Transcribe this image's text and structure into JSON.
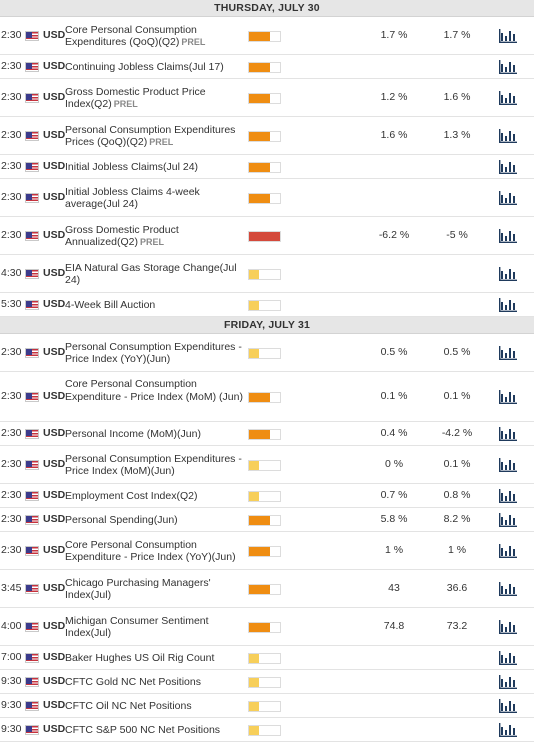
{
  "colors": {
    "impact_high_fill": "#ef8d12",
    "impact_medium_fill": "#ef8d12",
    "impact_low_fill": "#f7cf5a",
    "impact_critical_fill": "#d4493b",
    "chart_icon": "#1f3a5c"
  },
  "icons": {
    "chart": "bar-chart-icon",
    "flag": "us-flag-icon"
  },
  "days": [
    {
      "label": "THURSDAY, JULY 30",
      "events": [
        {
          "time": "2:30",
          "currency": "USD",
          "name": "Core Personal Consumption Expenditures (QoQ)(Q2)",
          "tag": "PREL",
          "impact": "high",
          "impact_level": 0.67,
          "actual": "1.7 %",
          "forecast": "1.7 %"
        },
        {
          "time": "2:30",
          "currency": "USD",
          "name": "Continuing Jobless Claims(Jul 17)",
          "tag": "",
          "impact": "high",
          "impact_level": 0.67,
          "actual": "",
          "forecast": ""
        },
        {
          "time": "2:30",
          "currency": "USD",
          "name": "Gross Domestic Product Price Index(Q2)",
          "tag": "PREL",
          "impact": "high",
          "impact_level": 0.67,
          "actual": "1.2 %",
          "forecast": "1.6 %"
        },
        {
          "time": "2:30",
          "currency": "USD",
          "name": "Personal Consumption Expenditures Prices (QoQ)(Q2)",
          "tag": "PREL",
          "impact": "high",
          "impact_level": 0.67,
          "actual": "1.6 %",
          "forecast": "1.3 %"
        },
        {
          "time": "2:30",
          "currency": "USD",
          "name": "Initial Jobless Claims(Jul 24)",
          "tag": "",
          "impact": "high",
          "impact_level": 0.67,
          "actual": "",
          "forecast": ""
        },
        {
          "time": "2:30",
          "currency": "USD",
          "name": "Initial Jobless Claims 4-week average(Jul 24)",
          "tag": "",
          "impact": "high",
          "impact_level": 0.67,
          "actual": "",
          "forecast": ""
        },
        {
          "time": "2:30",
          "currency": "USD",
          "name": "Gross Domestic Product Annualized(Q2)",
          "tag": "PREL",
          "impact": "critical",
          "impact_level": 1.0,
          "actual": "-6.2 %",
          "forecast": "-5 %"
        },
        {
          "time": "4:30",
          "currency": "USD",
          "name": "EIA Natural Gas Storage Change(Jul 24)",
          "tag": "",
          "impact": "low",
          "impact_level": 0.33,
          "actual": "",
          "forecast": ""
        },
        {
          "time": "5:30",
          "currency": "USD",
          "name": "4-Week Bill Auction",
          "tag": "",
          "impact": "low",
          "impact_level": 0.33,
          "actual": "",
          "forecast": ""
        }
      ]
    },
    {
      "label": "FRIDAY, JULY 31",
      "events": [
        {
          "time": "2:30",
          "currency": "USD",
          "name": "Personal Consumption Expenditures - Price Index (YoY)(Jun)",
          "tag": "",
          "impact": "low",
          "impact_level": 0.33,
          "actual": "0.5 %",
          "forecast": "0.5 %"
        },
        {
          "time": "2:30",
          "currency": "USD",
          "name": "Core Personal Consumption Expenditure - Price Index (MoM) (Jun)",
          "tag": "",
          "impact": "high",
          "impact_level": 0.67,
          "actual": "0.1 %",
          "forecast": "0.1 %"
        },
        {
          "time": "2:30",
          "currency": "USD",
          "name": "Personal Income (MoM)(Jun)",
          "tag": "",
          "impact": "high",
          "impact_level": 0.67,
          "actual": "0.4 %",
          "forecast": "-4.2 %"
        },
        {
          "time": "2:30",
          "currency": "USD",
          "name": "Personal Consumption Expenditures - Price Index (MoM)(Jun)",
          "tag": "",
          "impact": "low",
          "impact_level": 0.33,
          "actual": "0 %",
          "forecast": "0.1 %"
        },
        {
          "time": "2:30",
          "currency": "USD",
          "name": "Employment Cost Index(Q2)",
          "tag": "",
          "impact": "low",
          "impact_level": 0.33,
          "actual": "0.7 %",
          "forecast": "0.8 %"
        },
        {
          "time": "2:30",
          "currency": "USD",
          "name": "Personal Spending(Jun)",
          "tag": "",
          "impact": "high",
          "impact_level": 0.67,
          "actual": "5.8 %",
          "forecast": "8.2 %"
        },
        {
          "time": "2:30",
          "currency": "USD",
          "name": "Core Personal Consumption Expenditure - Price Index (YoY)(Jun)",
          "tag": "",
          "impact": "high",
          "impact_level": 0.67,
          "actual": "1 %",
          "forecast": "1 %"
        },
        {
          "time": "3:45",
          "currency": "USD",
          "name": "Chicago Purchasing Managers' Index(Jul)",
          "tag": "",
          "impact": "high",
          "impact_level": 0.67,
          "actual": "43",
          "forecast": "36.6"
        },
        {
          "time": "4:00",
          "currency": "USD",
          "name": "Michigan Consumer Sentiment Index(Jul)",
          "tag": "",
          "impact": "high",
          "impact_level": 0.67,
          "actual": "74.8",
          "forecast": "73.2"
        },
        {
          "time": "7:00",
          "currency": "USD",
          "name": "Baker Hughes US Oil Rig Count",
          "tag": "",
          "impact": "low",
          "impact_level": 0.33,
          "actual": "",
          "forecast": ""
        },
        {
          "time": "9:30",
          "currency": "USD",
          "name": "CFTC Gold NC Net Positions",
          "tag": "",
          "impact": "low",
          "impact_level": 0.33,
          "actual": "",
          "forecast": ""
        },
        {
          "time": "9:30",
          "currency": "USD",
          "name": "CFTC Oil NC Net Positions",
          "tag": "",
          "impact": "low",
          "impact_level": 0.33,
          "actual": "",
          "forecast": ""
        },
        {
          "time": "9:30",
          "currency": "USD",
          "name": "CFTC S&P 500 NC Net Positions",
          "tag": "",
          "impact": "low",
          "impact_level": 0.33,
          "actual": "",
          "forecast": ""
        }
      ]
    }
  ]
}
